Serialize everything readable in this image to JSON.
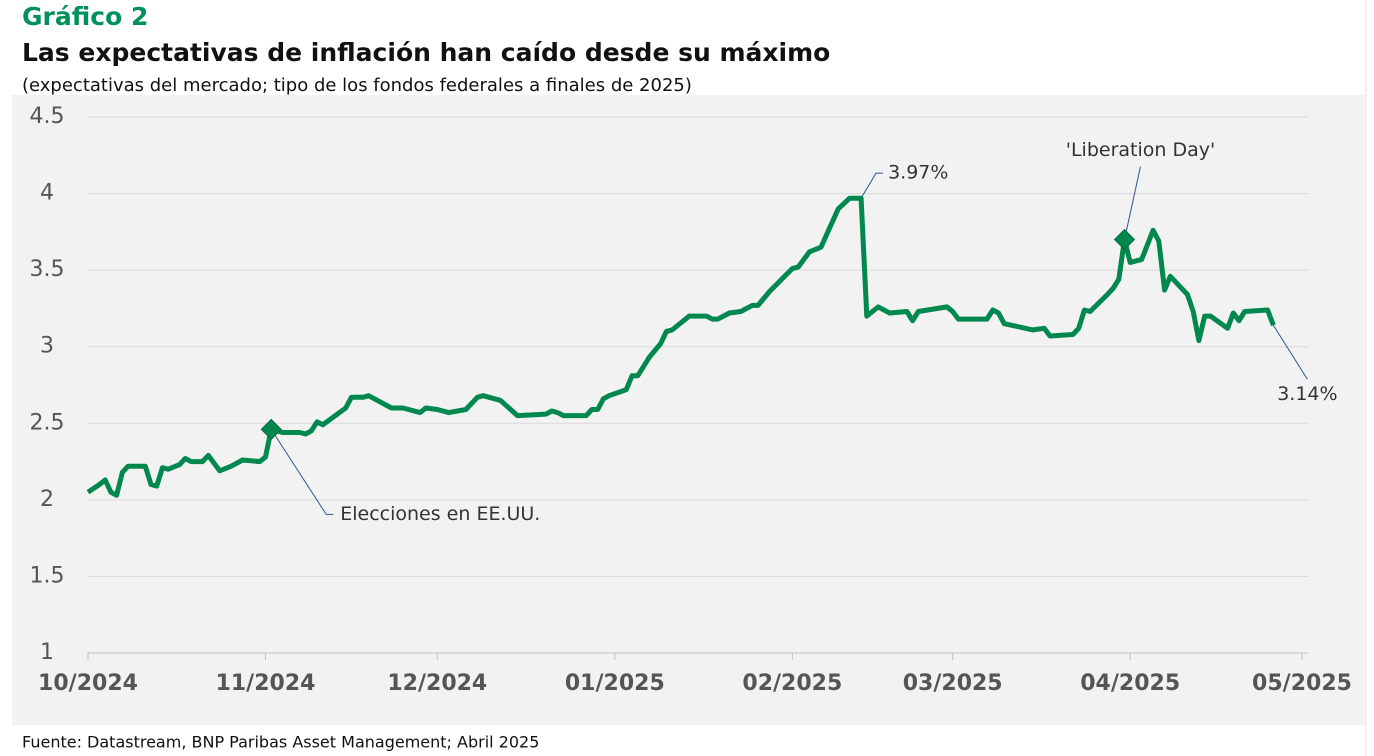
{
  "chart_data": {
    "type": "line",
    "kicker": "Gráfico 2",
    "title": "Las expectativas de inflación han caído desde su máximo",
    "subtitle": "(expectativas del mercado; tipo de los fondos federales a finales de 2025)",
    "source": "Fuente: Datastream, BNP Paribas Asset Management; Abril 2025",
    "color": "#00884f",
    "grid": true,
    "xlim": [
      0,
      212
    ],
    "xticks": [
      {
        "value": 0,
        "label": "10/2024"
      },
      {
        "value": 31,
        "label": "11/2024"
      },
      {
        "value": 61,
        "label": "12/2024"
      },
      {
        "value": 92,
        "label": "01/2025"
      },
      {
        "value": 123,
        "label": "02/2025"
      },
      {
        "value": 151,
        "label": "03/2025"
      },
      {
        "value": 182,
        "label": "04/2025"
      },
      {
        "value": 212,
        "label": "05/2025"
      }
    ],
    "ylim": [
      1,
      4.5
    ],
    "yticks": [
      1,
      1.5,
      2,
      2.5,
      3,
      3.5,
      4,
      4.5
    ],
    "x": [
      0,
      2,
      3,
      4,
      5,
      6,
      7,
      10,
      11,
      12,
      13,
      14,
      16,
      17,
      18,
      20,
      21,
      23,
      25,
      27,
      30,
      31,
      32,
      34,
      37,
      38,
      39,
      40,
      41,
      45,
      46,
      48,
      49,
      53,
      55,
      58,
      59,
      61,
      63,
      66,
      68,
      69,
      72,
      75,
      80,
      81,
      82,
      83,
      87,
      88,
      89,
      90,
      91,
      94,
      95,
      96,
      98,
      100,
      101,
      102,
      105,
      108,
      109,
      110,
      112,
      114,
      116,
      117,
      119,
      123,
      124,
      126,
      128,
      131,
      133,
      135,
      136,
      138,
      140,
      143,
      144,
      145,
      150,
      151,
      152,
      154,
      157,
      158,
      159,
      160,
      165,
      167,
      168,
      172,
      173,
      174,
      175,
      178,
      179,
      180,
      181,
      182,
      184,
      186,
      187,
      188,
      189,
      192,
      193,
      194,
      195,
      196,
      199,
      200,
      201,
      202,
      206,
      207
    ],
    "values": [
      2.05,
      2.1,
      2.13,
      2.05,
      2.03,
      2.18,
      2.22,
      2.22,
      2.1,
      2.09,
      2.21,
      2.2,
      2.23,
      2.27,
      2.25,
      2.25,
      2.29,
      2.19,
      2.22,
      2.26,
      2.25,
      2.28,
      2.46,
      2.44,
      2.44,
      2.43,
      2.45,
      2.51,
      2.49,
      2.6,
      2.67,
      2.67,
      2.68,
      2.6,
      2.6,
      2.57,
      2.6,
      2.59,
      2.57,
      2.59,
      2.67,
      2.68,
      2.65,
      2.55,
      2.56,
      2.58,
      2.57,
      2.55,
      2.55,
      2.59,
      2.59,
      2.66,
      2.68,
      2.72,
      2.81,
      2.81,
      2.93,
      3.02,
      3.1,
      3.11,
      3.2,
      3.2,
      3.18,
      3.18,
      3.22,
      3.23,
      3.27,
      3.27,
      3.36,
      3.51,
      3.52,
      3.62,
      3.65,
      3.9,
      3.97,
      3.97,
      3.2,
      3.26,
      3.22,
      3.23,
      3.17,
      3.23,
      3.26,
      3.23,
      3.18,
      3.18,
      3.18,
      3.24,
      3.22,
      3.15,
      3.11,
      3.12,
      3.07,
      3.08,
      3.12,
      3.24,
      3.23,
      3.34,
      3.38,
      3.44,
      3.7,
      3.55,
      3.57,
      3.76,
      3.69,
      3.37,
      3.46,
      3.34,
      3.23,
      3.04,
      3.2,
      3.2,
      3.12,
      3.22,
      3.17,
      3.23,
      3.24,
      3.14
    ],
    "value_labels": [
      null,
      null,
      null,
      null,
      null,
      null,
      null,
      null,
      null,
      null,
      null,
      null,
      null,
      null,
      null,
      null,
      null,
      null,
      null,
      null,
      null,
      null,
      null,
      null,
      null,
      null,
      null,
      null,
      null,
      null,
      null,
      null,
      null,
      null,
      null,
      null,
      null,
      null,
      null,
      null,
      null,
      null,
      null,
      null,
      null,
      null,
      null,
      null,
      null,
      null,
      null,
      null,
      null,
      null,
      null,
      null,
      null,
      null,
      null,
      null,
      null,
      null,
      null,
      null,
      null,
      null,
      null,
      null,
      null,
      null,
      null,
      null,
      null,
      null,
      null,
      "3.97%",
      null,
      null,
      null,
      null,
      null,
      null,
      null,
      null,
      null,
      null,
      null,
      null,
      null,
      null,
      null,
      null,
      null,
      null,
      null,
      null,
      null,
      null,
      null,
      null,
      null,
      null,
      null,
      null,
      null,
      null,
      null,
      null,
      null,
      null,
      null,
      null,
      null,
      null,
      null,
      null,
      null,
      "3.14%"
    ],
    "annotations": [
      {
        "text": "Elecciones en EE.UU.",
        "x": 32
      },
      {
        "text": "'Liberation Day'",
        "x": 181
      }
    ]
  }
}
